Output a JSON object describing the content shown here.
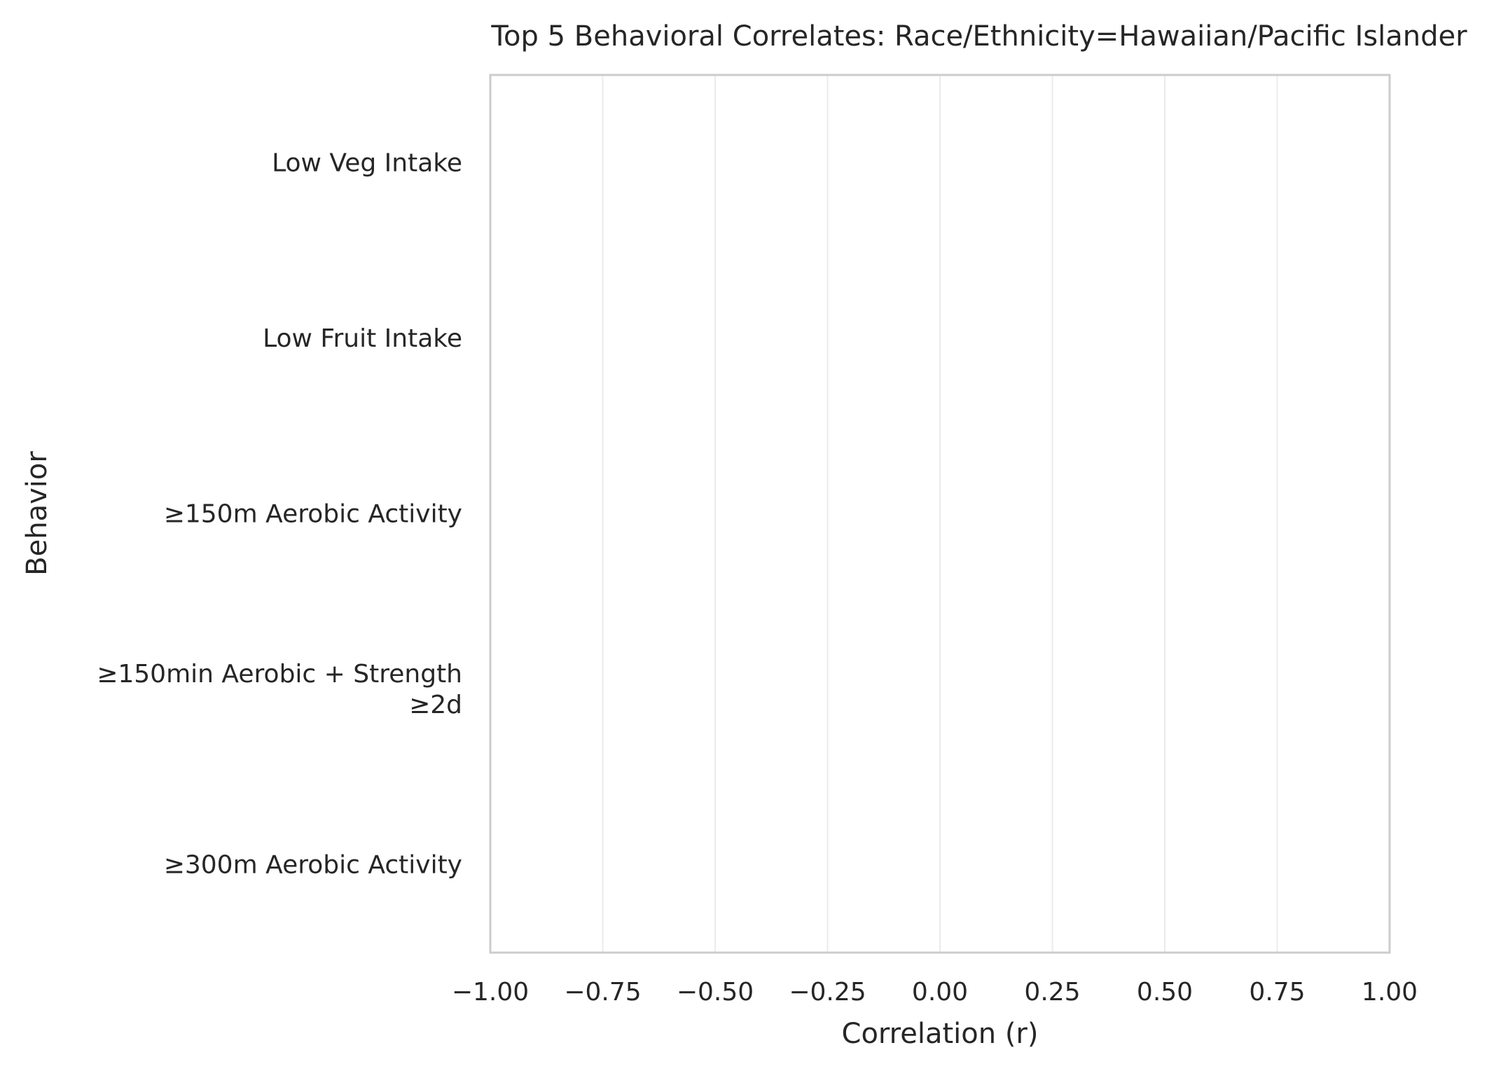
{
  "chart_data": {
    "type": "bar",
    "orientation": "horizontal",
    "title": "Top 5 Behavioral Correlates: Race/Ethnicity=Hawaiian/Pacific Islander",
    "xlabel": "Correlation (r)",
    "ylabel": "Behavior",
    "xlim": [
      -1.0,
      1.0
    ],
    "xticks": [
      -1.0,
      -0.75,
      -0.5,
      -0.25,
      0.0,
      0.25,
      0.5,
      0.75,
      1.0
    ],
    "xtick_labels": [
      "−1.00",
      "−0.75",
      "−0.50",
      "−0.25",
      "0.00",
      "0.25",
      "0.50",
      "0.75",
      "1.00"
    ],
    "categories": [
      [
        "Low Veg Intake"
      ],
      [
        "Low Fruit Intake"
      ],
      [
        "≥150m Aerobic Activity"
      ],
      [
        "≥150min Aerobic + Strength",
        "≥2d"
      ],
      [
        "≥300m Aerobic Activity"
      ]
    ],
    "values": [
      null,
      null,
      null,
      null,
      null
    ],
    "grid": "vertical",
    "legend": "none"
  },
  "colors": {
    "text": "#262626",
    "frame": "#cccccc",
    "grid": "#ebebeb",
    "background": "#ffffff"
  }
}
